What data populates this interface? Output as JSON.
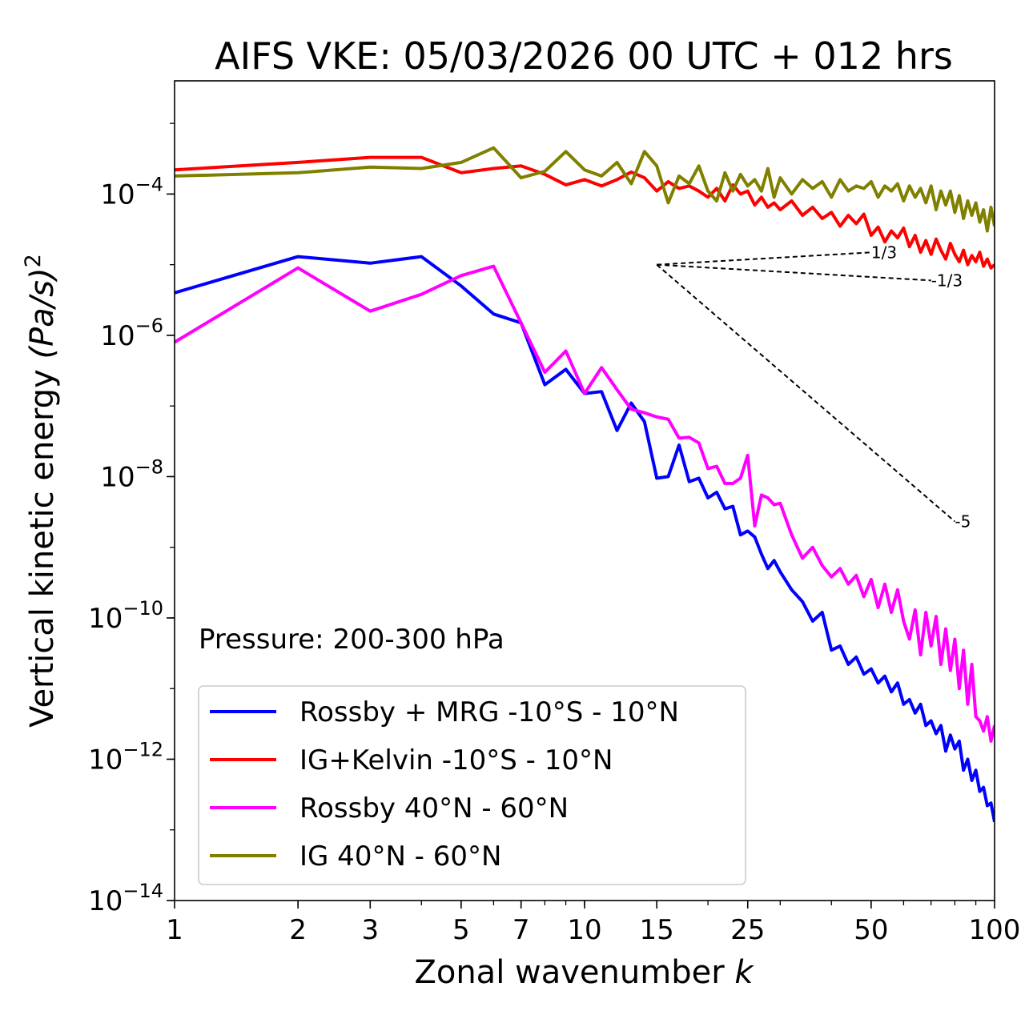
{
  "chart_data": {
    "type": "line",
    "title": "AIFS VKE: 05/03/2026 00 UTC + 012 hrs",
    "xlabel_text": "Zonal wavenumber ",
    "xlabel_italic": "k",
    "ylabel_text": "Vertical kinetic energy ",
    "ylabel_italic": "(Pa/s)",
    "ylabel_sup": "2",
    "xscale": "log",
    "yscale": "log",
    "xlim": [
      1,
      100
    ],
    "ylim": [
      1e-14,
      0.004
    ],
    "xticks": [
      {
        "v": 1,
        "label": "1"
      },
      {
        "v": 2,
        "label": "2"
      },
      {
        "v": 3,
        "label": "3"
      },
      {
        "v": 5,
        "label": "5"
      },
      {
        "v": 7,
        "label": "7"
      },
      {
        "v": 10,
        "label": "10"
      },
      {
        "v": 15,
        "label": "15"
      },
      {
        "v": 25,
        "label": "25"
      },
      {
        "v": 50,
        "label": "50"
      },
      {
        "v": 100,
        "label": "100"
      }
    ],
    "yticks": [
      {
        "exp": -4,
        "base": "10",
        "sup": "−4"
      },
      {
        "exp": -6,
        "base": "10",
        "sup": "−6"
      },
      {
        "exp": -8,
        "base": "10",
        "sup": "−8"
      },
      {
        "exp": -10,
        "base": "10",
        "sup": "−10"
      },
      {
        "exp": -12,
        "base": "10",
        "sup": "−12"
      },
      {
        "exp": -14,
        "base": "10",
        "sup": "−14"
      }
    ],
    "annotation": "Pressure: 200-300 hPa",
    "legend_position": "lower-left",
    "reference_slopes": [
      {
        "label": "1/3",
        "slope": 0.3333,
        "k0": 15,
        "y0": 1e-05,
        "k1": 50
      },
      {
        "label": "-1/3",
        "slope": -0.3333,
        "k0": 15,
        "y0": 1e-05,
        "k1": 70
      },
      {
        "label": "-5",
        "slope": -5,
        "k0": 15,
        "y0": 1e-05,
        "k1": 80
      }
    ],
    "series": [
      {
        "name": "Rossby + MRG -10°S - 10°N",
        "color": "#0000ff",
        "x": [
          1,
          2,
          3,
          4,
          5,
          6,
          7,
          8,
          9,
          10,
          11,
          12,
          13,
          14,
          15,
          16,
          17,
          18,
          19,
          20,
          21,
          22,
          23,
          24,
          25,
          26,
          27,
          28,
          29,
          30,
          32,
          34,
          36,
          38,
          40,
          42,
          44,
          46,
          48,
          50,
          52,
          54,
          56,
          58,
          60,
          62,
          64,
          66,
          68,
          70,
          72,
          74,
          76,
          78,
          80,
          82,
          84,
          86,
          88,
          90,
          92,
          94,
          96,
          98,
          100
        ],
        "y": [
          4e-06,
          1.3e-05,
          1.05e-05,
          1.3e-05,
          5e-06,
          2e-06,
          1.5e-06,
          2e-07,
          3.3e-07,
          1.5e-07,
          1.6e-07,
          4.5e-08,
          1.1e-07,
          6e-08,
          9.5e-09,
          1e-08,
          2.8e-08,
          8.5e-09,
          9.5e-09,
          5e-09,
          6e-09,
          3.5e-09,
          3.8e-09,
          1.5e-09,
          1.7e-09,
          1.4e-09,
          8e-10,
          5e-10,
          6.5e-10,
          4.5e-10,
          2.5e-10,
          1.7e-10,
          9e-11,
          1.2e-10,
          3.5e-11,
          4e-11,
          2.2e-11,
          2.8e-11,
          1.6e-11,
          1.9e-11,
          1.2e-11,
          1.5e-11,
          9e-12,
          1.2e-11,
          6e-12,
          7e-12,
          4.5e-12,
          6e-12,
          3e-12,
          3.5e-12,
          2.3e-12,
          3e-12,
          1.3e-12,
          2.2e-12,
          1.4e-12,
          1.8e-12,
          7e-13,
          1e-12,
          5e-13,
          7e-13,
          3.5e-13,
          4e-13,
          2.2e-13,
          2.4e-13,
          1.3e-13
        ]
      },
      {
        "name": "IG+Kelvin -10°S - 10°N",
        "color": "#ff0000",
        "x": [
          1,
          2,
          3,
          4,
          5,
          6,
          7,
          8,
          9,
          10,
          11,
          12,
          13,
          14,
          15,
          16,
          17,
          18,
          19,
          20,
          21,
          22,
          23,
          24,
          25,
          26,
          27,
          28,
          29,
          30,
          32,
          34,
          36,
          38,
          40,
          42,
          44,
          46,
          48,
          50,
          52,
          54,
          56,
          58,
          60,
          62,
          64,
          66,
          68,
          70,
          72,
          74,
          76,
          78,
          80,
          82,
          84,
          86,
          88,
          90,
          92,
          94,
          96,
          98,
          100
        ],
        "y": [
          0.00022,
          0.00028,
          0.00033,
          0.00033,
          0.0002,
          0.00023,
          0.00025,
          0.00019,
          0.000135,
          0.00016,
          0.00013,
          0.00016,
          0.000205,
          0.00017,
          0.00011,
          0.00015,
          0.00012,
          0.00013,
          0.00011,
          9e-05,
          0.00012,
          8e-05,
          0.000135,
          0.0001,
          0.00011,
          7e-05,
          9e-05,
          6.5e-05,
          7.5e-05,
          6e-05,
          8e-05,
          5e-05,
          6.5e-05,
          4.5e-05,
          5.5e-05,
          3.5e-05,
          5e-05,
          3.8e-05,
          5.2e-05,
          2.6e-05,
          3.4e-05,
          2.1e-05,
          3e-05,
          2.4e-05,
          3.3e-05,
          1.8e-05,
          2.6e-05,
          1.5e-05,
          2.2e-05,
          1.4e-05,
          2.3e-05,
          1.6e-05,
          1.2e-05,
          2e-05,
          1.4e-05,
          1.1e-05,
          1.6e-05,
          1e-05,
          1.35e-05,
          1.1e-05,
          1.5e-05,
          9.5e-06,
          1.2e-05,
          9e-06,
          1e-05
        ]
      },
      {
        "name": "Rossby 40°N - 60°N",
        "color": "#ff00ff",
        "x": [
          1,
          2,
          3,
          4,
          5,
          6,
          7,
          8,
          9,
          10,
          11,
          12,
          13,
          14,
          15,
          16,
          17,
          18,
          19,
          20,
          21,
          22,
          23,
          24,
          25,
          26,
          27,
          28,
          29,
          30,
          32,
          34,
          36,
          38,
          40,
          42,
          44,
          46,
          48,
          50,
          52,
          54,
          56,
          58,
          60,
          62,
          64,
          66,
          68,
          70,
          72,
          74,
          76,
          78,
          80,
          82,
          84,
          86,
          88,
          90,
          92,
          94,
          96,
          98,
          100
        ],
        "y": [
          8e-07,
          9e-06,
          2.2e-06,
          3.8e-06,
          7e-06,
          9.5e-06,
          1.5e-06,
          3e-07,
          6e-07,
          1.5e-07,
          3.5e-07,
          1.7e-07,
          9e-08,
          8e-08,
          7e-08,
          6.5e-08,
          3.5e-08,
          3.6e-08,
          3e-08,
          1.3e-08,
          1.4e-08,
          8e-09,
          8e-09,
          9.5e-09,
          2e-08,
          2e-09,
          5.5e-09,
          5e-09,
          4e-09,
          4.2e-09,
          1.5e-09,
          7e-10,
          1e-09,
          5.5e-10,
          3.8e-10,
          5e-10,
          3e-10,
          4e-10,
          2e-10,
          3.5e-10,
          1.4e-10,
          3e-10,
          1.2e-10,
          2.5e-10,
          9e-11,
          5e-11,
          1.3e-10,
          3e-11,
          1.2e-10,
          4e-11,
          1.05e-10,
          2.2e-11,
          7e-11,
          1.8e-11,
          5e-11,
          1e-11,
          3.5e-11,
          6e-12,
          2.2e-11,
          4e-12,
          3.5e-12,
          2.5e-12,
          4e-12,
          1.8e-12,
          3e-12
        ]
      },
      {
        "name": "IG 40°N - 60°N",
        "color": "#808000",
        "x": [
          1,
          2,
          3,
          4,
          5,
          6,
          7,
          8,
          9,
          10,
          11,
          12,
          13,
          14,
          15,
          16,
          17,
          18,
          19,
          20,
          21,
          22,
          23,
          24,
          25,
          26,
          27,
          28,
          29,
          30,
          32,
          34,
          36,
          38,
          40,
          42,
          44,
          46,
          48,
          50,
          52,
          54,
          56,
          58,
          60,
          62,
          64,
          66,
          68,
          70,
          72,
          74,
          76,
          78,
          80,
          82,
          84,
          86,
          88,
          90,
          92,
          94,
          96,
          98,
          100
        ],
        "y": [
          0.00018,
          0.0002,
          0.00024,
          0.00023,
          0.00028,
          0.00045,
          0.00017,
          0.00021,
          0.0004,
          0.00022,
          0.00018,
          0.00028,
          0.00014,
          0.0004,
          0.00025,
          7.5e-05,
          0.00018,
          0.00014,
          0.00025,
          0.00011,
          8e-05,
          0.0002,
          0.00011,
          0.00019,
          0.00013,
          0.00016,
          0.00011,
          0.00023,
          9e-05,
          0.00017,
          0.0001,
          0.00016,
          0.00012,
          0.00015,
          9e-05,
          0.00016,
          0.00011,
          0.00013,
          0.00012,
          0.00015,
          9e-05,
          0.00013,
          0.00011,
          0.00014,
          8e-05,
          0.00013,
          9e-05,
          0.00012,
          7.5e-05,
          0.00013,
          6e-05,
          0.00011,
          7e-05,
          0.00011,
          5.5e-05,
          9.5e-05,
          4.5e-05,
          8e-05,
          5e-05,
          7.5e-05,
          4e-05,
          6e-05,
          3e-05,
          6.5e-05,
          3.5e-05
        ]
      }
    ]
  }
}
